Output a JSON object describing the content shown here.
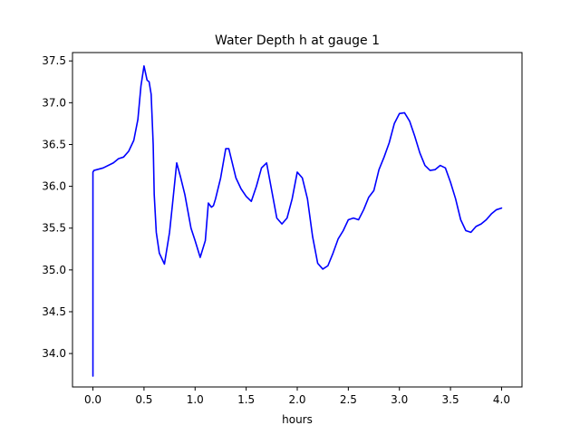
{
  "chart_data": {
    "type": "line",
    "title": "Water Depth h at gauge 1",
    "xlabel": "hours",
    "ylabel": "",
    "xlim": [
      -0.2,
      4.2
    ],
    "ylim": [
      33.6,
      37.6
    ],
    "xticks": [
      0.0,
      0.5,
      1.0,
      1.5,
      2.0,
      2.5,
      3.0,
      3.5,
      4.0
    ],
    "xtick_labels": [
      "0.0",
      "0.5",
      "1.0",
      "1.5",
      "2.0",
      "2.5",
      "3.0",
      "3.5",
      "4.0"
    ],
    "yticks": [
      34.0,
      34.5,
      35.0,
      35.5,
      36.0,
      36.5,
      37.0,
      37.5
    ],
    "ytick_labels": [
      "34.0",
      "34.5",
      "35.0",
      "35.5",
      "36.0",
      "36.5",
      "37.0",
      "37.5"
    ],
    "grid": false,
    "colors": {
      "line": "#0000ff"
    },
    "series": [
      {
        "x": [
          0.0,
          0.0,
          0.01,
          0.1,
          0.2,
          0.25,
          0.3,
          0.35,
          0.4,
          0.44,
          0.47,
          0.5,
          0.53,
          0.55,
          0.57,
          0.59,
          0.6,
          0.62,
          0.65,
          0.7,
          0.75,
          0.78,
          0.82,
          0.86,
          0.9,
          0.93,
          0.96,
          1.0,
          1.05,
          1.1,
          1.13,
          1.16,
          1.18,
          1.2,
          1.25,
          1.3,
          1.33,
          1.36,
          1.4,
          1.45,
          1.5,
          1.55,
          1.6,
          1.65,
          1.7,
          1.75,
          1.8,
          1.85,
          1.9,
          1.95,
          2.0,
          2.05,
          2.1,
          2.15,
          2.2,
          2.25,
          2.3,
          2.35,
          2.4,
          2.45,
          2.5,
          2.55,
          2.6,
          2.65,
          2.7,
          2.75,
          2.8,
          2.85,
          2.9,
          2.95,
          3.0,
          3.05,
          3.1,
          3.15,
          3.2,
          3.25,
          3.3,
          3.35,
          3.4,
          3.45,
          3.5,
          3.55,
          3.6,
          3.65,
          3.7,
          3.75,
          3.8,
          3.85,
          3.9,
          3.95,
          4.0
        ],
        "y": [
          33.73,
          36.17,
          36.19,
          36.22,
          36.28,
          36.33,
          36.35,
          36.42,
          36.55,
          36.8,
          37.2,
          37.44,
          37.27,
          37.25,
          37.1,
          36.5,
          35.9,
          35.45,
          35.2,
          35.07,
          35.45,
          35.8,
          36.28,
          36.1,
          35.9,
          35.7,
          35.5,
          35.35,
          35.15,
          35.35,
          35.8,
          35.75,
          35.77,
          35.85,
          36.1,
          36.45,
          36.45,
          36.3,
          36.1,
          35.97,
          35.88,
          35.82,
          36.0,
          36.22,
          36.28,
          35.95,
          35.62,
          35.55,
          35.62,
          35.85,
          36.17,
          36.1,
          35.85,
          35.4,
          35.08,
          35.01,
          35.05,
          35.2,
          35.37,
          35.47,
          35.6,
          35.62,
          35.6,
          35.72,
          35.87,
          35.95,
          36.2,
          36.35,
          36.52,
          36.75,
          36.87,
          36.88,
          36.78,
          36.6,
          36.4,
          36.25,
          36.19,
          36.2,
          36.25,
          36.22,
          36.05,
          35.85,
          35.6,
          35.47,
          35.45,
          35.52,
          35.55,
          35.6,
          35.67,
          35.72,
          35.74
        ]
      }
    ]
  }
}
